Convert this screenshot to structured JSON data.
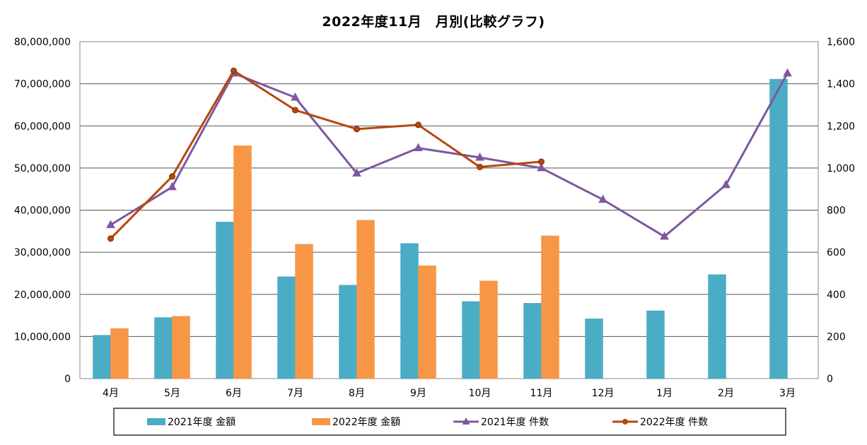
{
  "chart_data": {
    "type": "bar",
    "title": "2022年度11月　月別(比較グラフ)",
    "categories": [
      "4月",
      "5月",
      "6月",
      "7月",
      "8月",
      "9月",
      "10月",
      "11月",
      "12月",
      "1月",
      "2月",
      "3月"
    ],
    "y_left": {
      "lim": [
        0,
        80000000
      ],
      "ticks": [
        0,
        10000000,
        20000000,
        30000000,
        40000000,
        50000000,
        60000000,
        70000000,
        80000000
      ],
      "tick_labels": [
        "0",
        "10,000,000",
        "20,000,000",
        "30,000,000",
        "40,000,000",
        "50,000,000",
        "60,000,000",
        "70,000,000",
        "80,000,000"
      ]
    },
    "y_right": {
      "lim": [
        0,
        1600
      ],
      "ticks": [
        0,
        200,
        400,
        600,
        800,
        1000,
        1200,
        1400,
        1600
      ],
      "tick_labels": [
        "0",
        "200",
        "400",
        "600",
        "800",
        "1,000",
        "1,200",
        "1,400",
        "1,600"
      ]
    },
    "bar_series": [
      {
        "name": "2021年度 金額",
        "color": "#4bacc6",
        "axis": "left",
        "values": [
          10300000,
          14500000,
          37200000,
          24200000,
          22200000,
          32100000,
          18300000,
          17900000,
          14200000,
          16100000,
          24700000,
          71100000
        ]
      },
      {
        "name": "2022年度 金額",
        "color": "#f79646",
        "axis": "left",
        "values": [
          11900000,
          14800000,
          55300000,
          31900000,
          37600000,
          26800000,
          23200000,
          33900000,
          null,
          null,
          null,
          null
        ]
      }
    ],
    "line_series": [
      {
        "name": "2021年度 件数",
        "color": "#7f57a0",
        "marker": "triangle",
        "axis": "right",
        "values": [
          730,
          910,
          1450,
          1335,
          975,
          1095,
          1050,
          1000,
          850,
          675,
          920,
          1450
        ]
      },
      {
        "name": "2022年度 件数",
        "color": "#b7480b",
        "marker": "circle",
        "axis": "right",
        "values": [
          665,
          960,
          1462,
          1275,
          1185,
          1205,
          1005,
          1030,
          null,
          null,
          null,
          null
        ]
      }
    ],
    "legend_position": "bottom",
    "grid": "horizontal"
  }
}
